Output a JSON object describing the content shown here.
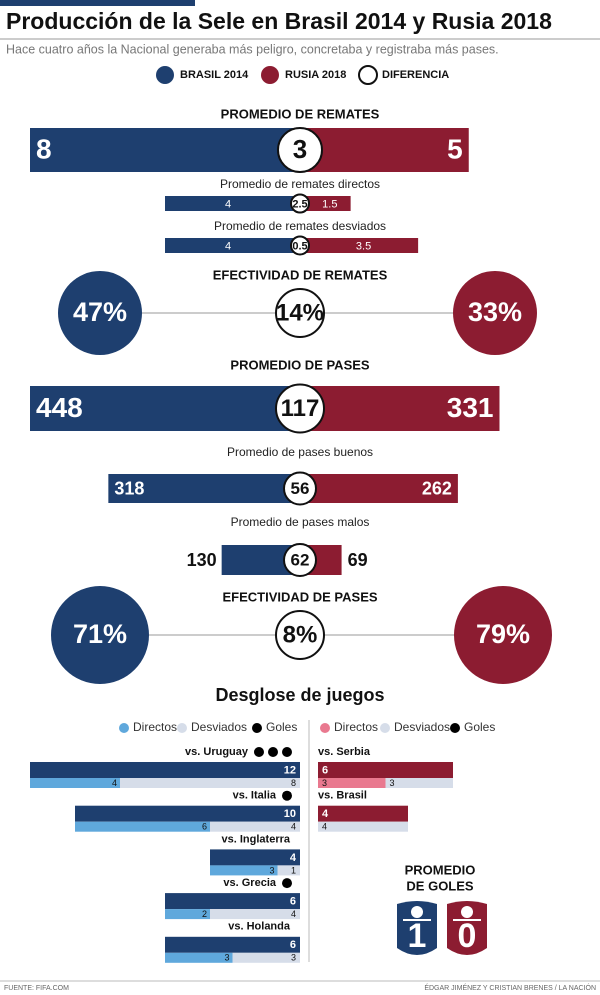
{
  "header": {
    "title": "Producción de la Sele en Brasil 2014 y Rusia 2018",
    "subtitle": "Hace cuatro años la Nacional generaba más peligro, concretaba y registraba más pases."
  },
  "legend": [
    {
      "name": "BRASIL 2014",
      "color": "#1e3f6f"
    },
    {
      "name": "RUSIA 2018",
      "color": "#8c1c31"
    },
    {
      "name": "DIFERENCIA",
      "color": "#ffffff"
    }
  ],
  "remates": {
    "heading": "PROMEDIO DE REMATES",
    "brasil": 8,
    "rusia": 5,
    "diferencia": 3,
    "desglose": [
      {
        "label": "Promedio de remates directos",
        "brasil": 4,
        "rusia": 1.5,
        "diferencia": 2.5
      },
      {
        "label": "Promedio de remates desviados",
        "brasil": 4,
        "rusia": 3.5,
        "diferencia": 0.5
      }
    ]
  },
  "efectividad_remates": {
    "heading": "EFECTIVIDAD DE REMATES",
    "brasil": 47,
    "rusia": 33,
    "diferencia": 14,
    "value_labels": {
      "brasil": "47%",
      "rusia": "33%",
      "diferencia": "14%"
    }
  },
  "pases": {
    "heading": "PROMEDIO DE PASES",
    "brasil": 448,
    "rusia": 331,
    "diferencia": 117,
    "desglose": [
      {
        "label": "Promedio de pases buenos",
        "brasil": 318,
        "rusia": 262,
        "diferencia": 56
      },
      {
        "label": "Promedio de pases malos",
        "brasil": 130,
        "rusia": 69,
        "diferencia": 62
      }
    ]
  },
  "efectividad_pases": {
    "heading": "EFECTIVIDAD DE PASES",
    "brasil": 71,
    "rusia": 79,
    "diferencia": 8,
    "value_labels": {
      "brasil": "71%",
      "rusia": "79%",
      "diferencia": "8%"
    }
  },
  "juegos": {
    "heading": "Desglose de juegos",
    "brasil": {
      "legend": [
        {
          "name": "Directos",
          "color": "#5fa8dc"
        },
        {
          "name": "Desviados",
          "color": "#d6dde9"
        },
        {
          "name": "Goles",
          "color": "#000000"
        }
      ],
      "games": [
        {
          "rival": "vs. Uruguay",
          "remates": 12,
          "directos": 4,
          "desviados": 8,
          "goles": 3
        },
        {
          "rival": "vs. Italia",
          "remates": 10,
          "directos": 6,
          "desviados": 4,
          "goles": 1
        },
        {
          "rival": "vs. Inglaterra",
          "remates": 4,
          "directos": 3,
          "desviados": 1,
          "goles": 0
        },
        {
          "rival": "vs. Grecia",
          "remates": 6,
          "directos": 2,
          "desviados": 4,
          "goles": 1
        },
        {
          "rival": "vs. Holanda",
          "remates": 6,
          "directos": 3,
          "desviados": 3,
          "goles": 0
        }
      ]
    },
    "rusia": {
      "legend": [
        {
          "name": "Directos",
          "color": "#e9798f"
        },
        {
          "name": "Desviados",
          "color": "#d6dde9"
        },
        {
          "name": "Goles",
          "color": "#000000"
        }
      ],
      "games": [
        {
          "rival": "vs. Serbia",
          "remates": 6,
          "directos": 3,
          "desviados": 3,
          "goles": 0
        },
        {
          "rival": "vs. Brasil",
          "remates": 4,
          "directos": 0,
          "desviados": 4,
          "goles": 0
        }
      ]
    }
  },
  "goles": {
    "heading_lines": [
      "PROMEDIO",
      "DE GOLES"
    ],
    "brasil": 1,
    "rusia": 0
  },
  "footer": {
    "source": "FUENTE: FIFA.COM",
    "credit": "ÉDGAR JIMÉNEZ Y CRISTIAN BRENES / LA NACIÓN"
  }
}
